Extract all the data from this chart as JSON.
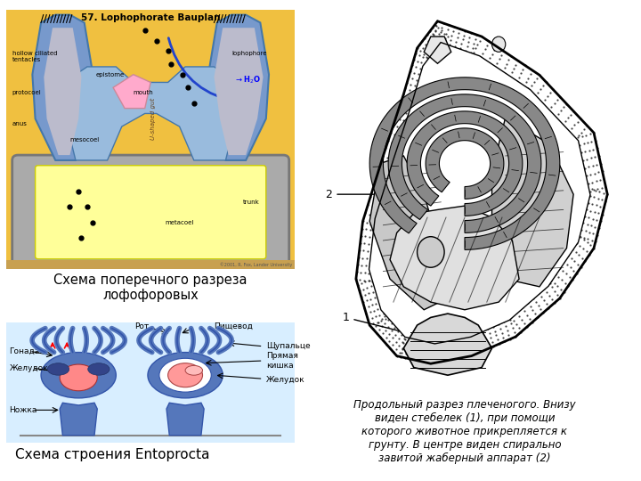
{
  "background_color": "#ffffff",
  "top_left_caption": "Схема поперечного разреза\nлофофоровых",
  "bottom_left_caption": "Схема строения Entoprocta",
  "right_caption": "Продольный разрез плеченогого. Внизу\nвиден стебелек (1), при помощи\nкоторого животное прикрепляется к\nгрунту. В центре виден спирально\nзавитой жаберный аппарат (2)",
  "fig_width": 7.2,
  "fig_height": 5.4,
  "dpi": 100,
  "top_left_bg": "#F0C040",
  "blue_color": "#7799CC",
  "light_blue": "#99BBDD",
  "yellow_fill": "#FFFFAA",
  "pink_color": "#FFAACC",
  "entoprocta_bg": "#D8EEFF",
  "body_blue": "#5577BB",
  "dark_blue": "#3355AA",
  "pink_body": "#FF9999"
}
